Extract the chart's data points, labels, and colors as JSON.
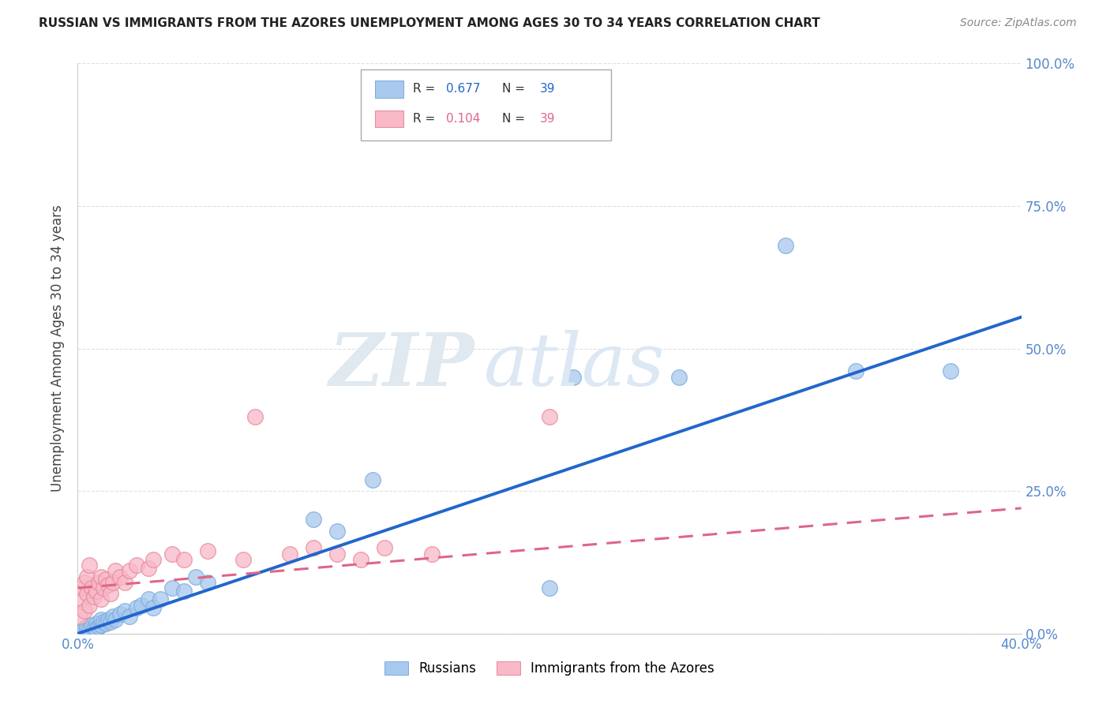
{
  "title": "RUSSIAN VS IMMIGRANTS FROM THE AZORES UNEMPLOYMENT AMONG AGES 30 TO 34 YEARS CORRELATION CHART",
  "source": "Source: ZipAtlas.com",
  "ylabel": "Unemployment Among Ages 30 to 34 years",
  "xlim": [
    0.0,
    0.4
  ],
  "ylim": [
    0.0,
    1.0
  ],
  "xticks": [
    0.0,
    0.4
  ],
  "yticks": [
    0.0,
    0.25,
    0.5,
    0.75,
    1.0
  ],
  "xtick_labels": [
    "0.0%",
    "40.0%"
  ],
  "ytick_labels_right": [
    "0.0%",
    "25.0%",
    "50.0%",
    "75.0%",
    "100.0%"
  ],
  "legend_label_blue": "Russians",
  "legend_label_pink": "Immigrants from the Azores",
  "blue_color": "#a8c8ee",
  "blue_edge_color": "#7aabdd",
  "blue_line_color": "#2266cc",
  "pink_color": "#f8b8c8",
  "pink_edge_color": "#e88898",
  "pink_line_color": "#dd6688",
  "r_blue": "0.677",
  "n_blue": "39",
  "r_pink": "0.104",
  "n_pink": "39",
  "blue_scatter_x": [
    0.002,
    0.003,
    0.004,
    0.004,
    0.005,
    0.006,
    0.007,
    0.008,
    0.008,
    0.009,
    0.01,
    0.01,
    0.011,
    0.012,
    0.013,
    0.014,
    0.015,
    0.016,
    0.018,
    0.02,
    0.022,
    0.025,
    0.027,
    0.03,
    0.032,
    0.035,
    0.04,
    0.045,
    0.05,
    0.055,
    0.1,
    0.11,
    0.125,
    0.2,
    0.21,
    0.255,
    0.3,
    0.33,
    0.37
  ],
  "blue_scatter_y": [
    0.005,
    0.01,
    0.008,
    0.012,
    0.007,
    0.015,
    0.01,
    0.018,
    0.008,
    0.012,
    0.015,
    0.025,
    0.02,
    0.018,
    0.025,
    0.02,
    0.03,
    0.025,
    0.035,
    0.04,
    0.03,
    0.045,
    0.05,
    0.06,
    0.045,
    0.06,
    0.08,
    0.075,
    0.1,
    0.09,
    0.2,
    0.18,
    0.27,
    0.08,
    0.45,
    0.45,
    0.68,
    0.46,
    0.46
  ],
  "pink_scatter_x": [
    0.001,
    0.002,
    0.002,
    0.003,
    0.003,
    0.004,
    0.004,
    0.005,
    0.005,
    0.006,
    0.007,
    0.008,
    0.009,
    0.01,
    0.01,
    0.011,
    0.012,
    0.013,
    0.014,
    0.015,
    0.016,
    0.018,
    0.02,
    0.022,
    0.025,
    0.03,
    0.032,
    0.04,
    0.045,
    0.055,
    0.07,
    0.075,
    0.09,
    0.1,
    0.11,
    0.12,
    0.13,
    0.15,
    0.2
  ],
  "pink_scatter_y": [
    0.03,
    0.06,
    0.08,
    0.04,
    0.09,
    0.07,
    0.1,
    0.05,
    0.12,
    0.08,
    0.065,
    0.075,
    0.09,
    0.06,
    0.1,
    0.08,
    0.095,
    0.085,
    0.07,
    0.09,
    0.11,
    0.1,
    0.09,
    0.11,
    0.12,
    0.115,
    0.13,
    0.14,
    0.13,
    0.145,
    0.13,
    0.38,
    0.14,
    0.15,
    0.14,
    0.13,
    0.15,
    0.14,
    0.38
  ],
  "blue_line_x": [
    0.0,
    0.4
  ],
  "blue_line_y": [
    0.0,
    0.555
  ],
  "pink_line_x": [
    0.0,
    0.4
  ],
  "pink_line_y": [
    0.08,
    0.22
  ],
  "watermark_zip_color": "#e0e8f0",
  "watermark_atlas_color": "#dce8f4",
  "grid_color": "#dddddd",
  "tick_label_color": "#5588cc",
  "axis_label_color": "#444444"
}
